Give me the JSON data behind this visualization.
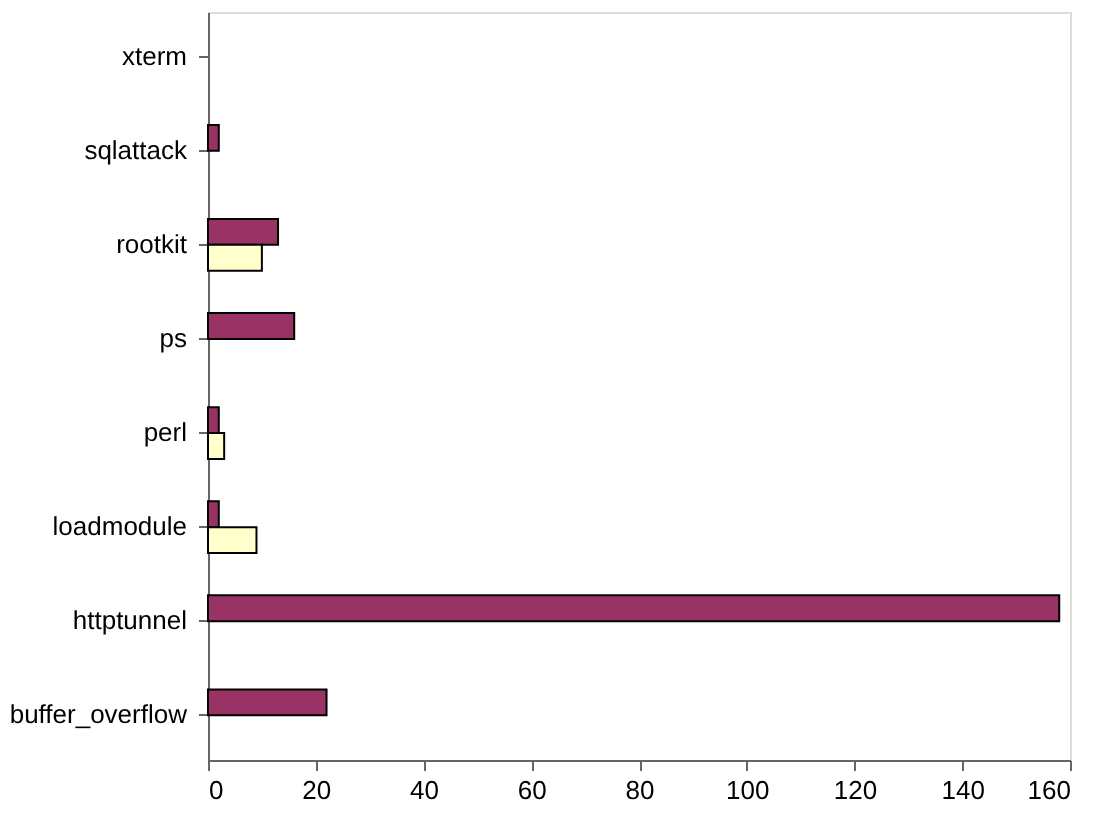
{
  "chart_data": {
    "type": "bar",
    "orientation": "horizontal",
    "categories": [
      "xterm",
      "sqlattack",
      "rootkit",
      "ps",
      "perl",
      "loadmodule",
      "httptunnel",
      "buffer_overflow"
    ],
    "series": [
      {
        "color": "#993366",
        "values": [
          null,
          2,
          13,
          16,
          2,
          2,
          158,
          22
        ]
      },
      {
        "color": "#ffffcc",
        "values": [
          null,
          null,
          10,
          null,
          3,
          9,
          null,
          null
        ]
      }
    ],
    "xlim": [
      0,
      160
    ],
    "xticks": [
      0,
      20,
      40,
      60,
      80,
      100,
      120,
      140,
      160
    ],
    "grid": false,
    "legend": false
  }
}
